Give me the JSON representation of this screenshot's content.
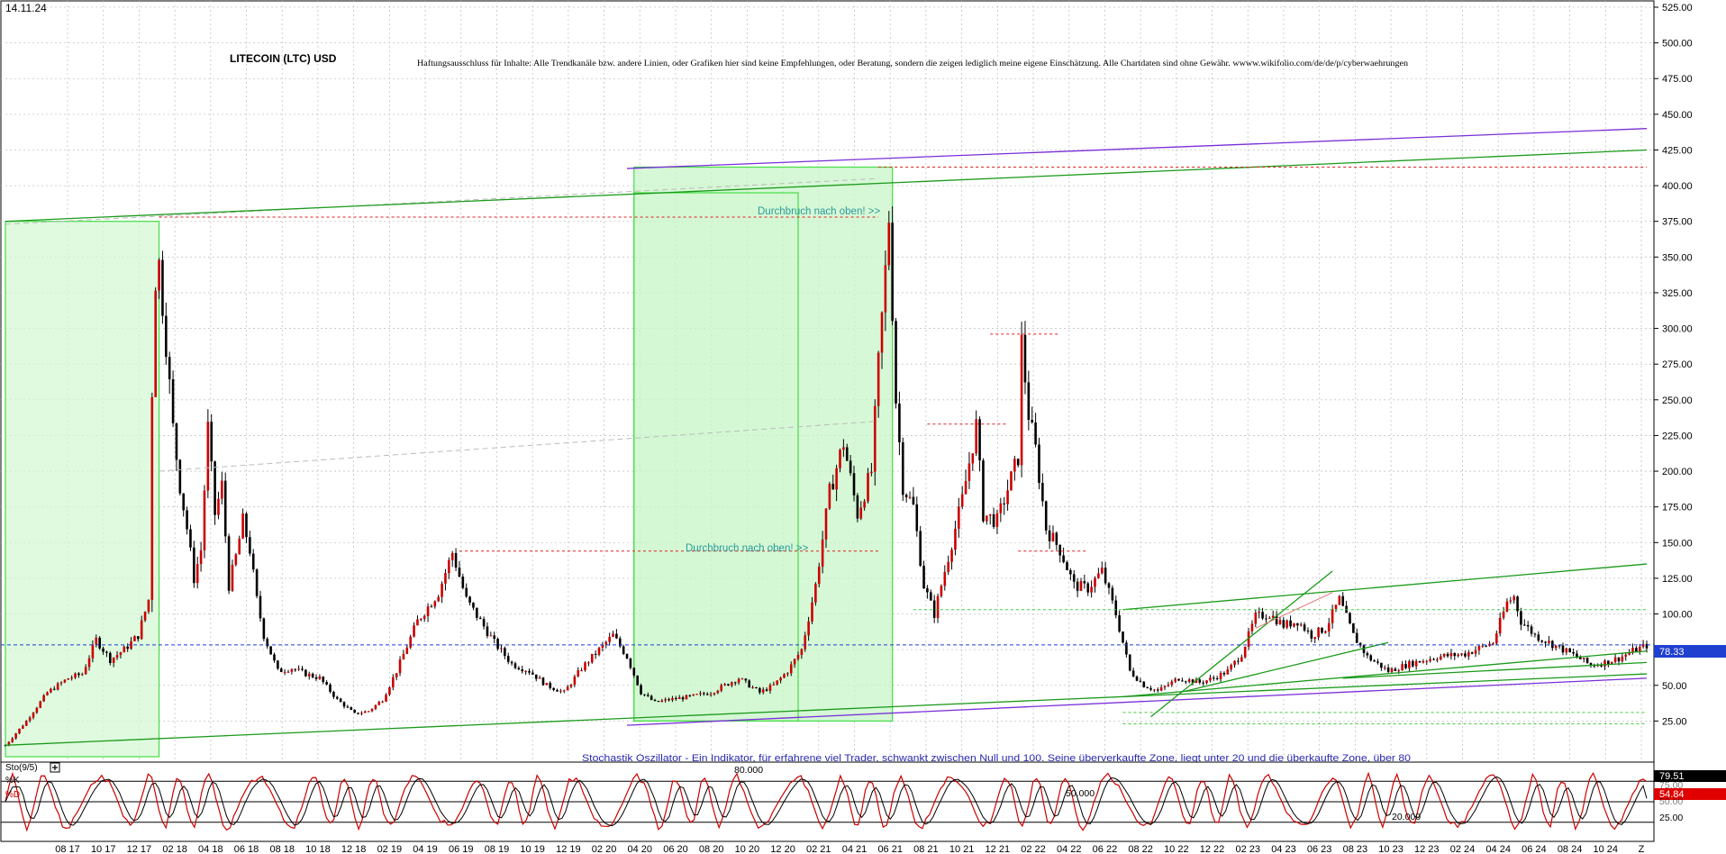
{
  "date_label": "14.11.24",
  "title": "LITECOIN (LTC) USD",
  "disclaimer": "Haftungsausschluss für Inhalte: Alle Trendkanäle bzw. andere Linien, oder Grafiken hier sind keine Empfehlungen, oder Beratung, sondern die zeigen lediglich meine eigene Einschätzung. Alle Chartdaten sind ohne Gewähr. wwww.wikifolio.com/de/de/p/cyberwaehrungen",
  "annotations": {
    "breakout_1": "Durchbruch nach oben! >>",
    "breakout_2": "Durchbruch nach oben! >>",
    "oscillator_note": "Stochastik Oszillator - Ein Indikator, für erfahrene viel Trader, schwankt zwischen Null und 100. Seine überverkaufte Zone, liegt unter 20 und die überkaufte Zone, über 80"
  },
  "current_price_label": "78.33",
  "oscillator": {
    "name": "Sto(9/5)",
    "k_label": "%K",
    "d_label": "%D",
    "k_value": "79.51",
    "d_value": "54.84",
    "level_labels": [
      "80.000",
      "50.000",
      "20.000"
    ],
    "axis_labels": [
      "75.00",
      "50.00",
      "25.00"
    ]
  },
  "colors": {
    "candle_up": "#cc0000",
    "candle_down": "#000000",
    "channel_green": "#1a9a1a",
    "channel_purple": "#7a2ed8",
    "resistance_red": "#e02020",
    "price_blue": "#1f3fd0",
    "zone_fill": "#c8f5c8",
    "k_line": "#cc0000",
    "d_line": "#000000"
  },
  "chart_data": {
    "type": "candlestick",
    "ylim": [
      0,
      525
    ],
    "yticks": [
      "25.00",
      "50.00",
      "75.00",
      "100.00",
      "125.00",
      "150.00",
      "175.00",
      "200.00",
      "225.00",
      "250.00",
      "275.00",
      "300.00",
      "325.00",
      "350.00",
      "375.00",
      "400.00",
      "425.00",
      "450.00",
      "475.00",
      "500.00",
      "525.00"
    ],
    "xticks": [
      "08 17",
      "10 17",
      "12 17",
      "02 18",
      "04 18",
      "06 18",
      "08 18",
      "10 18",
      "12 18",
      "02 19",
      "04 19",
      "06 19",
      "08 19",
      "10 19",
      "12 19",
      "02 20",
      "04 20",
      "06 20",
      "08 20",
      "10 20",
      "12 20",
      "02 21",
      "04 21",
      "06 21",
      "08 21",
      "10 21",
      "12 21",
      "02 22",
      "04 22",
      "06 22",
      "08 22",
      "10 22",
      "12 22",
      "02 23",
      "04 23",
      "06 23",
      "08 23",
      "10 23",
      "12 23",
      "02 24",
      "04 24",
      "06 24",
      "08 24",
      "10 24",
      "Z"
    ],
    "price_path": [
      [
        0,
        8
      ],
      [
        6,
        25
      ],
      [
        12,
        45
      ],
      [
        18,
        55
      ],
      [
        22,
        58
      ],
      [
        26,
        82
      ],
      [
        30,
        68
      ],
      [
        34,
        75
      ],
      [
        38,
        85
      ],
      [
        41,
        110
      ],
      [
        42.5,
        330
      ],
      [
        44,
        345
      ],
      [
        46,
        290
      ],
      [
        48,
        230
      ],
      [
        50,
        190
      ],
      [
        52,
        160
      ],
      [
        54,
        125
      ],
      [
        56,
        145
      ],
      [
        58,
        230
      ],
      [
        60,
        170
      ],
      [
        62,
        190
      ],
      [
        64,
        120
      ],
      [
        66,
        140
      ],
      [
        68,
        165
      ],
      [
        70,
        145
      ],
      [
        72,
        110
      ],
      [
        74,
        85
      ],
      [
        78,
        60
      ],
      [
        82,
        62
      ],
      [
        86,
        58
      ],
      [
        90,
        55
      ],
      [
        95,
        40
      ],
      [
        100,
        30
      ],
      [
        104,
        32
      ],
      [
        108,
        40
      ],
      [
        112,
        60
      ],
      [
        118,
        95
      ],
      [
        124,
        115
      ],
      [
        128,
        143
      ],
      [
        132,
        110
      ],
      [
        136,
        95
      ],
      [
        140,
        80
      ],
      [
        145,
        65
      ],
      [
        150,
        60
      ],
      [
        155,
        50
      ],
      [
        160,
        45
      ],
      [
        165,
        62
      ],
      [
        170,
        75
      ],
      [
        174,
        85
      ],
      [
        178,
        70
      ],
      [
        182,
        45
      ],
      [
        186,
        38
      ],
      [
        190,
        40
      ],
      [
        196,
        42
      ],
      [
        202,
        45
      ],
      [
        206,
        50
      ],
      [
        210,
        55
      ],
      [
        216,
        45
      ],
      [
        220,
        50
      ],
      [
        224,
        60
      ],
      [
        228,
        75
      ],
      [
        232,
        120
      ],
      [
        236,
        185
      ],
      [
        240,
        220
      ],
      [
        244,
        170
      ],
      [
        248,
        200
      ],
      [
        250,
        275
      ],
      [
        252,
        340
      ],
      [
        253,
        378
      ],
      [
        255,
        250
      ],
      [
        257,
        190
      ],
      [
        260,
        175
      ],
      [
        263,
        120
      ],
      [
        266,
        100
      ],
      [
        270,
        140
      ],
      [
        274,
        180
      ],
      [
        278,
        232
      ],
      [
        280,
        170
      ],
      [
        284,
        165
      ],
      [
        288,
        195
      ],
      [
        290,
        210
      ],
      [
        291,
        290
      ],
      [
        293,
        240
      ],
      [
        295,
        215
      ],
      [
        298,
        160
      ],
      [
        302,
        145
      ],
      [
        306,
        120
      ],
      [
        310,
        118
      ],
      [
        314,
        130
      ],
      [
        318,
        100
      ],
      [
        322,
        60
      ],
      [
        326,
        50
      ],
      [
        330,
        46
      ],
      [
        336,
        55
      ],
      [
        342,
        52
      ],
      [
        346,
        55
      ],
      [
        350,
        60
      ],
      [
        354,
        72
      ],
      [
        358,
        98
      ],
      [
        362,
        100
      ],
      [
        366,
        92
      ],
      [
        370,
        95
      ],
      [
        374,
        85
      ],
      [
        378,
        90
      ],
      [
        382,
        110
      ],
      [
        386,
        85
      ],
      [
        390,
        70
      ],
      [
        396,
        60
      ],
      [
        402,
        65
      ],
      [
        410,
        70
      ],
      [
        418,
        72
      ],
      [
        426,
        80
      ],
      [
        430,
        108
      ],
      [
        432,
        112
      ],
      [
        434,
        95
      ],
      [
        438,
        85
      ],
      [
        442,
        80
      ],
      [
        446,
        75
      ],
      [
        450,
        70
      ],
      [
        454,
        64
      ],
      [
        458,
        66
      ],
      [
        462,
        69
      ],
      [
        466,
        74
      ],
      [
        470,
        78
      ]
    ],
    "channels": [
      {
        "name": "green-upper",
        "points": [
          [
            0,
            375
          ],
          [
            470,
            425
          ]
        ]
      },
      {
        "name": "green-lower",
        "points": [
          [
            0,
            8
          ],
          [
            470,
            58
          ]
        ]
      },
      {
        "name": "purple-upper",
        "points": [
          [
            178,
            412
          ],
          [
            470,
            440
          ]
        ]
      },
      {
        "name": "purple-lower",
        "points": [
          [
            178,
            22
          ],
          [
            470,
            55
          ]
        ]
      },
      {
        "name": "green-mid-upper",
        "points": [
          [
            320,
            103
          ],
          [
            470,
            135
          ]
        ]
      },
      {
        "name": "green-mid-lower",
        "points": [
          [
            320,
            42
          ],
          [
            470,
            74
          ]
        ]
      },
      {
        "name": "green-rising-a",
        "points": [
          [
            328,
            28
          ],
          [
            380,
            130
          ]
        ]
      },
      {
        "name": "green-rising-b",
        "points": [
          [
            338,
            46
          ],
          [
            396,
            80
          ]
        ]
      }
    ],
    "resistance_levels": [
      {
        "value": 413,
        "x": [
          250,
          470
        ]
      },
      {
        "value": 378,
        "x": [
          44,
          250
        ]
      },
      {
        "value": 144,
        "x": [
          130,
          250
        ]
      },
      {
        "value": 233,
        "x": [
          264,
          287
        ]
      },
      {
        "value": 296,
        "x": [
          282,
          302
        ]
      },
      {
        "value": 144,
        "x": [
          290,
          310
        ]
      }
    ],
    "support_levels": [
      {
        "value": 103,
        "x": [
          260,
          470
        ]
      },
      {
        "value": 31,
        "x": [
          320,
          470
        ]
      },
      {
        "value": 23,
        "x": [
          320,
          470
        ]
      }
    ],
    "current_price": 78.33,
    "zones": [
      {
        "x": [
          0,
          44
        ],
        "y": [
          0,
          375
        ]
      },
      {
        "x": [
          180,
          254
        ],
        "y": [
          25,
          413
        ]
      },
      {
        "x": [
          180,
          227
        ],
        "y": [
          25,
          395
        ]
      }
    ],
    "oscillator": {
      "type": "stochastic",
      "ylim": [
        0,
        100
      ],
      "levels": [
        80,
        50,
        20
      ],
      "k_last": 79.51,
      "d_last": 54.84
    }
  }
}
